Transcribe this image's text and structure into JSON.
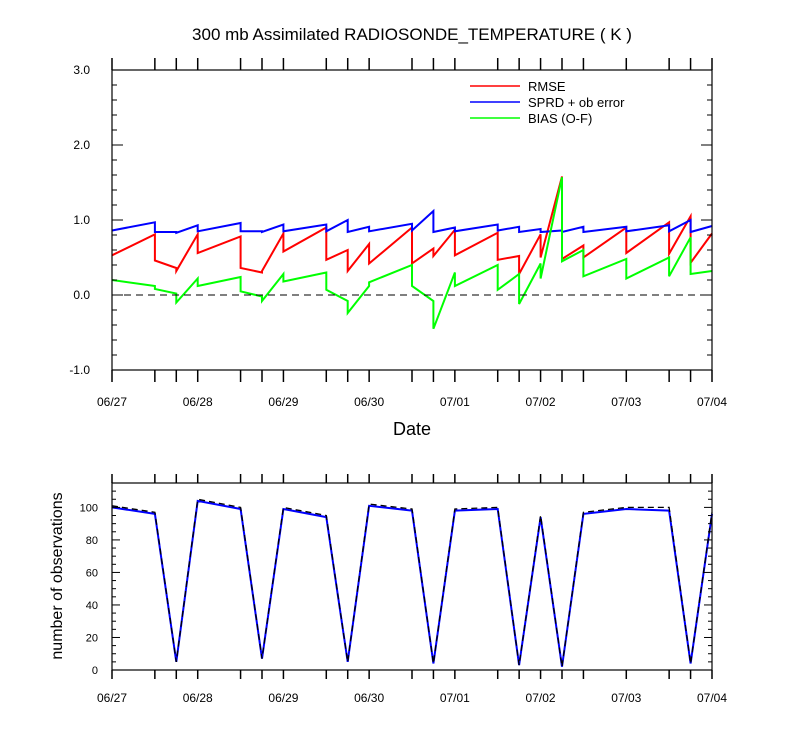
{
  "chart_data": [
    {
      "type": "line",
      "title": "300 mb Assimilated RADIOSONDE_TEMPERATURE ( K )",
      "xlabel": "Date",
      "ylabel": "",
      "ylim": [
        -1.0,
        3.0
      ],
      "yticks": [
        "3.0",
        "2.0",
        "1.0",
        "0.0",
        "-1.0"
      ],
      "xlim": [
        "2024-06-27 00:00",
        "2024-07-04 00:00"
      ],
      "xticks": [
        "06/27",
        "06/28",
        "06/29",
        "06/30",
        "07/01",
        "07/02",
        "07/03",
        "07/04"
      ],
      "legend_position": "top-right",
      "zero_line": "dashed",
      "series": [
        {
          "name": "RMSE",
          "color": "#ff0000",
          "x": [
            "06/27 00:00",
            "06/27 12:00",
            "06/27 12:00",
            "06/27 18:00",
            "06/27 18:00",
            "06/28 00:00",
            "06/28 00:00",
            "06/28 12:00",
            "06/28 12:00",
            "06/28 18:00",
            "06/28 18:00",
            "06/29 00:00",
            "06/29 00:00",
            "06/29 12:00",
            "06/29 12:00",
            "06/29 18:00",
            "06/29 18:00",
            "06/30 00:00",
            "06/30 00:00",
            "06/30 12:00",
            "06/30 12:00",
            "06/30 18:00",
            "06/30 18:00",
            "07/01 00:00",
            "07/01 00:00",
            "07/01 12:00",
            "07/01 12:00",
            "07/01 18:00",
            "07/01 18:00",
            "07/02 00:00",
            "07/02 00:00",
            "07/02 06:00",
            "07/02 06:00",
            "07/02 12:00",
            "07/02 12:00",
            "07/03 00:00",
            "07/03 00:00",
            "07/03 12:00",
            "07/03 12:00",
            "07/03 18:00",
            "07/03 18:00",
            "07/04 00:00"
          ],
          "y": [
            0.53,
            0.81,
            0.46,
            0.36,
            0.32,
            0.81,
            0.56,
            0.78,
            0.36,
            0.3,
            0.32,
            0.82,
            0.58,
            0.9,
            0.47,
            0.6,
            0.32,
            0.68,
            0.42,
            0.9,
            0.42,
            0.62,
            0.52,
            0.87,
            0.53,
            0.83,
            0.47,
            0.52,
            0.28,
            0.81,
            0.5,
            1.58,
            0.48,
            0.66,
            0.5,
            0.9,
            0.56,
            0.97,
            0.55,
            1.05,
            0.43,
            0.82
          ]
        },
        {
          "name": "SPRD + ob error",
          "color": "#0000ff",
          "x": [
            "06/27 00:00",
            "06/27 12:00",
            "06/27 12:00",
            "06/27 18:00",
            "06/27 18:00",
            "06/28 00:00",
            "06/28 00:00",
            "06/28 12:00",
            "06/28 12:00",
            "06/28 18:00",
            "06/28 18:00",
            "06/29 00:00",
            "06/29 00:00",
            "06/29 12:00",
            "06/29 12:00",
            "06/29 18:00",
            "06/29 18:00",
            "06/30 00:00",
            "06/30 00:00",
            "06/30 12:00",
            "06/30 12:00",
            "06/30 18:00",
            "06/30 18:00",
            "07/01 00:00",
            "07/01 00:00",
            "07/01 12:00",
            "07/01 12:00",
            "07/01 18:00",
            "07/01 18:00",
            "07/02 00:00",
            "07/02 00:00",
            "07/02 06:00",
            "07/02 06:00",
            "07/02 12:00",
            "07/02 12:00",
            "07/03 00:00",
            "07/03 00:00",
            "07/03 12:00",
            "07/03 12:00",
            "07/03 18:00",
            "07/03 18:00",
            "07/04 00:00"
          ],
          "y": [
            0.86,
            0.97,
            0.84,
            0.84,
            0.83,
            0.93,
            0.85,
            0.96,
            0.85,
            0.85,
            0.84,
            0.94,
            0.85,
            0.94,
            0.85,
            1.0,
            0.84,
            0.91,
            0.85,
            0.95,
            0.86,
            1.12,
            0.84,
            0.9,
            0.85,
            0.94,
            0.86,
            0.91,
            0.84,
            0.88,
            0.84,
            0.86,
            0.84,
            0.91,
            0.84,
            0.91,
            0.85,
            0.93,
            0.85,
            1.0,
            0.84,
            0.92
          ]
        },
        {
          "name": "BIAS (O-F)",
          "color": "#00ff00",
          "x": [
            "06/27 00:00",
            "06/27 12:00",
            "06/27 12:00",
            "06/27 18:00",
            "06/27 18:00",
            "06/28 00:00",
            "06/28 00:00",
            "06/28 12:00",
            "06/28 12:00",
            "06/28 18:00",
            "06/28 18:00",
            "06/29 00:00",
            "06/29 00:00",
            "06/29 12:00",
            "06/29 12:00",
            "06/29 18:00",
            "06/29 18:00",
            "06/30 00:00",
            "06/30 00:00",
            "06/30 12:00",
            "06/30 12:00",
            "06/30 18:00",
            "06/30 18:00",
            "07/01 00:00",
            "07/01 00:00",
            "07/01 12:00",
            "07/01 12:00",
            "07/01 18:00",
            "07/01 18:00",
            "07/02 00:00",
            "07/02 00:00",
            "07/02 06:00",
            "07/02 06:00",
            "07/02 12:00",
            "07/02 12:00",
            "07/03 00:00",
            "07/03 00:00",
            "07/03 12:00",
            "07/03 12:00",
            "07/03 18:00",
            "07/03 18:00",
            "07/04 00:00"
          ],
          "y": [
            0.2,
            0.12,
            0.08,
            0.02,
            -0.1,
            0.22,
            0.12,
            0.24,
            0.05,
            -0.02,
            -0.08,
            0.28,
            0.18,
            0.3,
            0.07,
            -0.08,
            -0.24,
            0.12,
            0.17,
            0.4,
            0.12,
            -0.08,
            -0.45,
            0.3,
            0.12,
            0.4,
            0.07,
            0.28,
            -0.12,
            0.42,
            0.22,
            1.57,
            0.45,
            0.6,
            0.25,
            0.48,
            0.22,
            0.5,
            0.25,
            0.77,
            0.28,
            0.32
          ]
        }
      ]
    },
    {
      "type": "line",
      "title": "",
      "xlabel": "",
      "ylabel": "number of observations",
      "ylim": [
        0,
        115
      ],
      "yticks": [
        "100",
        "80",
        "60",
        "40",
        "20",
        "0"
      ],
      "xlim": [
        "2024-06-27 00:00",
        "2024-07-04 00:00"
      ],
      "xticks": [
        "06/27",
        "06/28",
        "06/29",
        "06/30",
        "07/01",
        "07/02",
        "07/03",
        "07/04"
      ],
      "series": [
        {
          "color": "#0000ff",
          "style": "solid",
          "x": [
            "06/27 00:00",
            "06/27 12:00",
            "06/27 18:00",
            "06/28 00:00",
            "06/28 12:00",
            "06/28 18:00",
            "06/29 00:00",
            "06/29 12:00",
            "06/29 18:00",
            "06/30 00:00",
            "06/30 12:00",
            "06/30 18:00",
            "07/01 00:00",
            "07/01 12:00",
            "07/01 18:00",
            "07/02 00:00",
            "07/02 06:00",
            "07/02 12:00",
            "07/03 00:00",
            "07/03 12:00",
            "07/03 18:00",
            "07/04 00:00"
          ],
          "y": [
            100,
            96,
            5,
            104,
            99,
            7,
            99,
            94,
            5,
            101,
            98,
            4,
            98,
            99,
            3,
            94,
            2,
            96,
            99,
            98,
            4,
            96
          ]
        },
        {
          "color": "#000000",
          "style": "dashed",
          "x": [
            "06/27 00:00",
            "06/27 12:00",
            "06/27 18:00",
            "06/28 00:00",
            "06/28 12:00",
            "06/28 18:00",
            "06/29 00:00",
            "06/29 12:00",
            "06/29 18:00",
            "06/30 00:00",
            "06/30 12:00",
            "06/30 18:00",
            "07/01 00:00",
            "07/01 12:00",
            "07/01 18:00",
            "07/02 00:00",
            "07/02 06:00",
            "07/02 12:00",
            "07/03 00:00",
            "07/03 12:00",
            "07/03 18:00",
            "07/04 00:00"
          ],
          "y": [
            101,
            97,
            5,
            105,
            100,
            7,
            100,
            95,
            5,
            102,
            99,
            4,
            99,
            100,
            3,
            95,
            2,
            97,
            100,
            100,
            4,
            97
          ]
        }
      ]
    }
  ]
}
